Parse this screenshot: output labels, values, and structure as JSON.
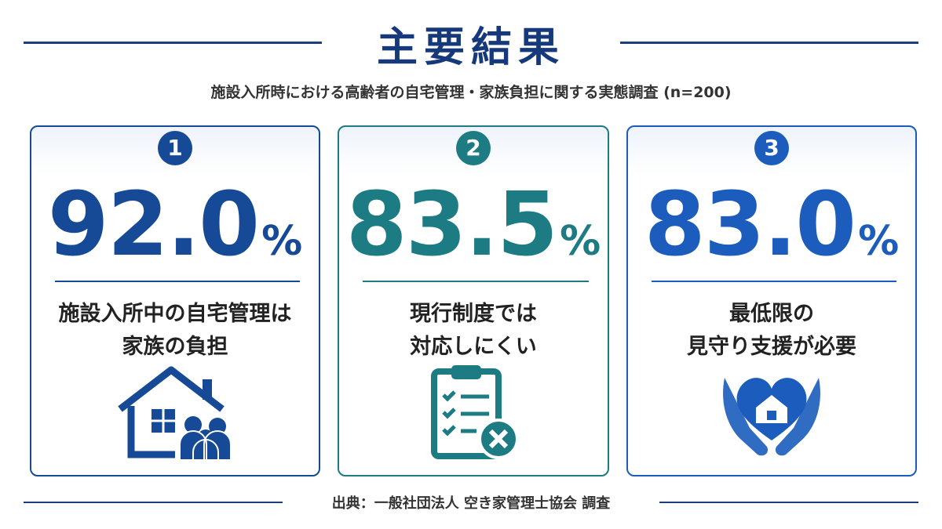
{
  "header": {
    "title": "主要結果",
    "subtitle": "施設入所時における高齢者の自宅管理・家族負担に関する実態調査 (n=200)"
  },
  "cards": [
    {
      "number": "1",
      "value": "92.0",
      "unit": "%",
      "lines": [
        "施設入所中の自宅管理は",
        "家族の負担"
      ],
      "color": "#174a96"
    },
    {
      "number": "2",
      "value": "83.5",
      "unit": "%",
      "lines": [
        "現行制度では",
        "対応しにくい"
      ],
      "color": "#1c7b83"
    },
    {
      "number": "3",
      "value": "83.0",
      "unit": "%",
      "lines": [
        "最低限の",
        "見守り支援が必要"
      ],
      "color": "#1b5cbc"
    }
  ],
  "footer": {
    "source": "出典：一般社団法人 空き家管理士協会 調査"
  }
}
